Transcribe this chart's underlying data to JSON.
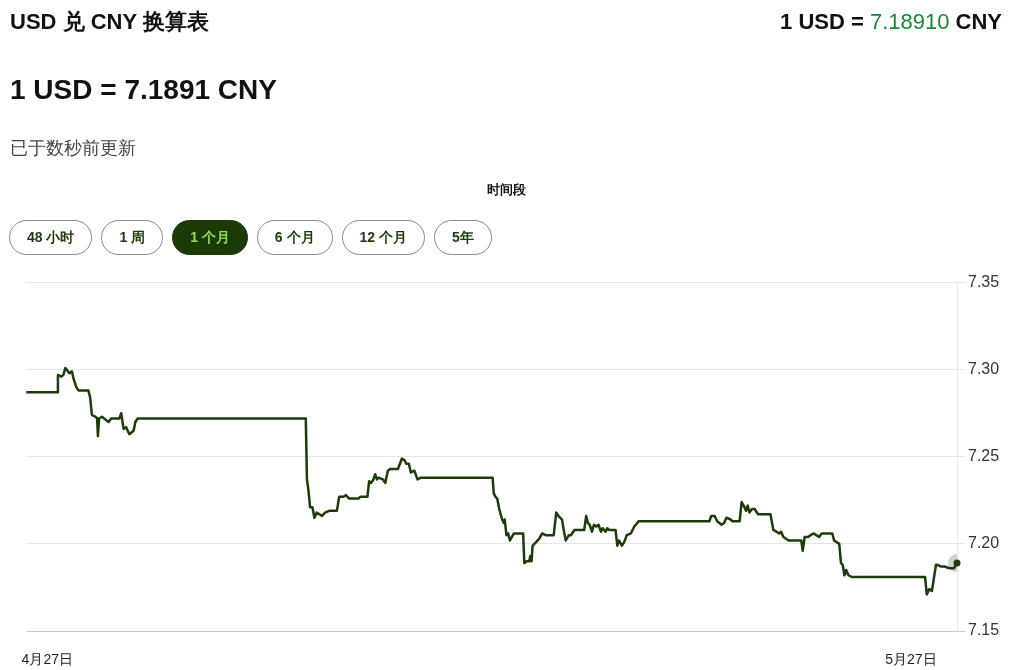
{
  "chart_data": {
    "type": "line",
    "title": "USD 兑 CNY 换算表",
    "subtitle": "1 USD = 7.1891 CNY",
    "annotations": [
      "1 USD = 7.18910 CNY",
      "已于数秒前更新",
      "时间段",
      "48 小时",
      "1 周",
      "1 个月",
      "6 个月",
      "12 个月",
      "5年"
    ],
    "xlim": [
      "--04-26T06:29",
      "--05-28T14:24"
    ],
    "xticks": [
      {
        "value": "--04-27",
        "label": "4月27日"
      },
      {
        "value": "--05-27",
        "label": "5月27日"
      }
    ],
    "ylim": [
      7.15,
      7.35
    ],
    "yticks": [
      7.15,
      {
        "value": 7.2,
        "label": "7.20"
      },
      7.25,
      {
        "value": 7.3,
        "label": "7.30"
      },
      7.35
    ],
    "grid": "y",
    "series": [
      {
        "color": "#1d3b0b",
        "x": [
          "--04-26T06:29",
          "--04-27T08:38",
          "--04-27T08:53",
          "--04-27T11:46",
          "--04-27T13:26",
          "--04-27T15:07",
          "--04-27T16:19",
          "--04-27T18:14",
          "--04-27T20:38",
          "--04-27T21:50",
          "--04-28T00:14",
          "--04-28T02:10",
          "--04-28T10:19",
          "--04-28T11:46",
          "--04-28T13:12",
          "--04-28T16:05",
          "--04-28T17:31",
          "--04-28T18:14",
          "--04-28T19:12",
          "--04-28T21:36",
          "--04-29T03:07",
          "--04-29T05:17",
          "--04-29T12:14",
          "--04-29T13:41",
          "--04-29T15:36",
          "--04-29T17:46",
          "--04-29T20:24",
          "--04-30T00:00",
          "--04-30T01:26",
          "--04-30T03:22",
          "--05-05T23:31",
          "--05-06T00:29",
          "--05-06T01:41",
          "--05-06T03:07",
          "--05-06T05:02",
          "--05-06T06:43",
          "--05-06T08:38",
          "--05-06T12:58",
          "--05-06T15:36",
          "--05-06T18:58",
          "--05-07T01:26",
          "--05-07T03:22",
          "--05-07T06:58",
          "--05-07T08:53",
          "--05-07T11:46",
          "--05-07T19:26",
          "--05-07T20:53",
          "--05-08T02:53",
          "--05-08T04:19",
          "--05-08T06:00",
          "--05-08T07:55",
          "--05-08T09:22",
          "--05-08T10:48",
          "--05-08T12:00",
          "--05-08T15:50",
          "--05-08T17:46",
          "--05-08T19:55",
          "--05-08T21:50",
          "--05-09T04:19",
          "--05-09T07:41",
          "--05-09T09:50",
          "--05-09T11:17",
          "--05-09T13:26",
          "--05-09T15:07",
          "--05-09T18:00",
          "--05-09T20:38",
          "--05-09T23:31",
          "--05-12T11:17",
          "--05-12T12:14",
          "--05-12T13:41",
          "--05-12T15:07",
          "--05-12T16:48",
          "--05-12T19:12",
          "--05-12T20:38",
          "--05-12T21:22",
          "--05-12T22:48",
          "--05-13T00:14",
          "--05-13T01:41",
          "--05-13T05:02",
          "--05-13T12:43",
          "--05-13T13:41",
          "--05-13T15:36",
          "--05-13T17:46",
          "--05-13T18:43",
          "--05-13T19:41",
          "--05-13T20:38",
          "--05-13T23:31",
          "--05-14T02:10",
          "--05-14T04:34",
          "--05-14T07:26",
          "--05-14T14:10",
          "--05-14T16:19",
          "--05-14T18:14",
          "--05-14T21:07",
          "--05-14T22:48",
          "--05-15T00:14",
          "--05-15T02:53",
          "--05-15T04:34",
          "--05-15T07:26",
          "--05-15T15:36",
          "--05-15T17:17",
          "--05-15T18:43",
          "--05-15T20:10",
          "--05-15T22:05",
          "--05-15T23:46",
          "--05-16T01:41",
          "--05-16T03:36",
          "--05-16T05:31",
          "--05-16T06:58",
          "--05-16T09:22",
          "--05-16T10:48",
          "--05-16T12:14",
          "--05-16T17:46",
          "--05-16T19:12",
          "--05-16T20:38",
          "--05-16T23:02",
          "--05-17T00:58",
          "--05-17T03:07",
          "--05-17T06:29",
          "--05-17T09:22",
          "--05-17T10:48",
          "--05-17T12:58",
          "--05-20T00:00",
          "--05-20T01:26",
          "--05-20T04:19",
          "--05-20T06:29",
          "--05-20T10:05",
          "--05-20T12:14",
          "--05-20T14:10",
          "--05-20T17:46",
          "--05-20T19:12",
          "--05-21T01:12",
          "--05-21T02:53",
          "--05-21T04:34",
          "--05-21T06:29",
          "--05-21T07:55",
          "--05-21T09:22",
          "--05-21T11:31",
          "--05-21T13:41",
          "--05-21T16:34",
          "--05-22T02:53",
          "--05-22T05:17",
          "--05-22T07:55",
          "--05-22T10:05",
          "--05-22T11:46",
          "--05-22T13:41",
          "--05-22T18:00",
          "--05-22T21:22",
          "--05-23T04:34",
          "--05-23T05:46",
          "--05-23T07:26",
          "--05-23T10:19",
          "--05-23T12:14",
          "--05-23T15:07",
          "--05-23T17:02",
          "--05-23T19:26",
          "--05-23T21:36",
          "--05-24T06:29",
          "--05-24T07:55",
          "--05-24T12:14",
          "--05-24T13:41",
          "--05-24T15:07",
          "--05-24T16:34",
          "--05-24T18:00",
          "--05-24T19:55",
          "--05-24T22:48",
          "--05-27T11:46",
          "--05-27T13:12",
          "--05-27T15:07",
          "--05-27T17:31",
          "--05-27T20:53",
          "--05-27T22:05",
          "--05-28T00:58",
          "--05-28T03:50",
          "--05-28T08:10",
          "--05-28T11:46",
          "--05-28T14:24"
        ],
        "values": [
          7.287,
          7.287,
          7.297,
          7.296,
          7.297,
          7.301,
          7.3,
          7.298,
          7.299,
          7.295,
          7.29,
          7.288,
          7.288,
          7.284,
          7.274,
          7.273,
          7.272,
          7.262,
          7.272,
          7.273,
          7.27,
          7.272,
          7.272,
          7.275,
          7.266,
          7.267,
          7.263,
          7.265,
          7.27,
          7.272,
          7.272,
          7.237,
          7.231,
          7.221,
          7.221,
          7.215,
          7.218,
          7.216,
          7.218,
          7.219,
          7.219,
          7.227,
          7.227,
          7.228,
          7.226,
          7.226,
          7.227,
          7.227,
          7.236,
          7.235,
          7.237,
          7.24,
          7.237,
          7.238,
          7.237,
          7.235,
          7.242,
          7.243,
          7.243,
          7.249,
          7.248,
          7.246,
          7.246,
          7.241,
          7.242,
          7.237,
          7.238,
          7.238,
          7.229,
          7.227,
          7.226,
          7.22,
          7.214,
          7.212,
          7.214,
          7.205,
          7.206,
          7.202,
          7.206,
          7.206,
          7.189,
          7.19,
          7.19,
          7.193,
          7.19,
          7.199,
          7.201,
          7.203,
          7.206,
          7.205,
          7.205,
          7.218,
          7.216,
          7.214,
          7.207,
          7.202,
          7.205,
          7.205,
          7.208,
          7.208,
          7.216,
          7.212,
          7.211,
          7.207,
          7.211,
          7.21,
          7.211,
          7.207,
          7.209,
          7.207,
          7.209,
          7.208,
          7.208,
          7.199,
          7.202,
          7.199,
          7.201,
          7.205,
          7.206,
          7.21,
          7.211,
          7.213,
          7.213,
          7.216,
          7.216,
          7.213,
          7.211,
          7.212,
          7.215,
          7.214,
          7.213,
          7.213,
          7.224,
          7.222,
          7.219,
          7.222,
          7.218,
          7.22,
          7.22,
          7.217,
          7.217,
          7.208,
          7.207,
          7.206,
          7.207,
          7.204,
          7.202,
          7.202,
          7.202,
          7.196,
          7.204,
          7.204,
          7.205,
          7.206,
          7.205,
          7.204,
          7.206,
          7.206,
          7.202,
          7.2,
          7.189,
          7.188,
          7.182,
          7.185,
          7.182,
          7.181,
          7.181,
          7.171,
          7.174,
          7.173,
          7.188,
          7.188,
          7.187,
          7.187,
          7.186,
          7.186,
          7.189
        ]
      },
      {
        "type": "scatter",
        "color": "#1d3b0b",
        "marker": "circle",
        "x": [
          "--05-28T14:24"
        ],
        "values": [
          7.189
        ]
      }
    ]
  }
}
